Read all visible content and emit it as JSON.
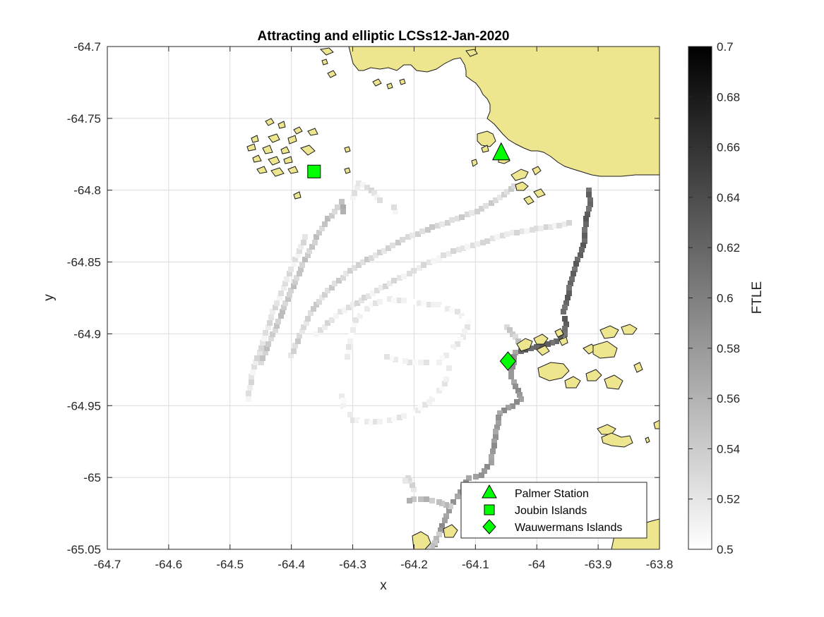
{
  "chart_data": {
    "type": "heatmap",
    "title": "Attracting and elliptic LCSs12-Jan-2020",
    "xlabel": "x",
    "ylabel": "y",
    "xlim": [
      -64.7,
      -63.8
    ],
    "ylim": [
      -65.05,
      -64.7
    ],
    "x_ticks": [
      -64.7,
      -64.6,
      -64.5,
      -64.4,
      -64.3,
      -64.2,
      -64.1,
      -64.0,
      -63.9,
      -63.8
    ],
    "y_ticks": [
      -64.7,
      -64.75,
      -64.8,
      -64.85,
      -64.9,
      -64.95,
      -65.0,
      -65.05
    ],
    "x_tick_labels": [
      "-64.7",
      "-64.6",
      "-64.5",
      "-64.4",
      "-64.3",
      "-64.2",
      "-64.1",
      "-64",
      "-63.9",
      "-63.8"
    ],
    "y_tick_labels": [
      "-64.7",
      "-64.75",
      "-64.8",
      "-64.85",
      "-64.9",
      "-64.95",
      "-65",
      "-65.05"
    ],
    "grid": true,
    "colorbar": {
      "label": "FTLE",
      "colormap": "gray-reversed",
      "range": [
        0.5,
        0.7
      ],
      "ticks": [
        0.5,
        0.52,
        0.54,
        0.56,
        0.58,
        0.6,
        0.62,
        0.64,
        0.66,
        0.68,
        0.7
      ],
      "tick_labels": [
        "0.5",
        "0.52",
        "0.54",
        "0.56",
        "0.58",
        "0.6",
        "0.62",
        "0.64",
        "0.66",
        "0.68",
        "0.7"
      ]
    },
    "land_color": "#eee58f",
    "marker_color": "#00ff00",
    "markers": [
      {
        "name": "Palmer Station",
        "shape": "triangle",
        "x": -64.058,
        "y": -64.774
      },
      {
        "name": "Joubin Islands",
        "shape": "square",
        "x": -64.363,
        "y": -64.787
      },
      {
        "name": "Wauwermans Islands",
        "shape": "diamond",
        "x": -64.047,
        "y": -64.919
      }
    ],
    "legend_position": "bottom-right",
    "ftle_ridges": [
      {
        "value": 0.62,
        "points": [
          [
            -63.915,
            -64.8
          ],
          [
            -63.913,
            -64.81
          ],
          [
            -63.92,
            -64.82
          ],
          [
            -63.922,
            -64.835
          ],
          [
            -63.93,
            -64.845
          ],
          [
            -63.938,
            -64.855
          ],
          [
            -63.945,
            -64.865
          ],
          [
            -63.95,
            -64.875
          ],
          [
            -63.956,
            -64.885
          ],
          [
            -63.952,
            -64.893
          ],
          [
            -63.955,
            -64.9
          ],
          [
            -63.968,
            -64.905
          ],
          [
            -63.99,
            -64.908
          ],
          [
            -64.01,
            -64.91
          ],
          [
            -64.035,
            -64.913
          ]
        ]
      },
      {
        "value": 0.58,
        "points": [
          [
            -64.035,
            -64.913
          ],
          [
            -64.042,
            -64.93
          ],
          [
            -64.03,
            -64.94
          ],
          [
            -64.025,
            -64.945
          ],
          [
            -64.04,
            -64.95
          ],
          [
            -64.06,
            -64.955
          ],
          [
            -64.065,
            -64.965
          ],
          [
            -64.07,
            -64.978
          ],
          [
            -64.075,
            -64.99
          ],
          [
            -64.09,
            -64.998
          ],
          [
            -64.11,
            -65.0
          ],
          [
            -64.125,
            -65.01
          ],
          [
            -64.14,
            -65.02
          ],
          [
            -64.15,
            -65.03
          ],
          [
            -64.16,
            -65.04
          ],
          [
            -64.17,
            -65.05
          ]
        ]
      },
      {
        "value": 0.55,
        "points": [
          [
            -64.14,
            -65.02
          ],
          [
            -64.16,
            -65.017
          ],
          [
            -64.18,
            -65.015
          ],
          [
            -64.2,
            -65.015
          ],
          [
            -64.215,
            -65.018
          ]
        ]
      },
      {
        "value": 0.55,
        "points": [
          [
            -64.16,
            -65.04
          ],
          [
            -64.17,
            -65.048
          ],
          [
            -64.2,
            -65.045
          ]
        ]
      },
      {
        "value": 0.53,
        "points": [
          [
            -64.2,
            -65.008
          ],
          [
            -64.21,
            -65.0
          ],
          [
            -64.22,
            -65.004
          ]
        ]
      },
      {
        "value": 0.54,
        "points": [
          [
            -64.048,
            -64.895
          ],
          [
            -64.04,
            -64.9
          ],
          [
            -64.03,
            -64.905
          ],
          [
            -64.015,
            -64.909
          ]
        ]
      },
      {
        "value": 0.54,
        "points": [
          [
            -64.45,
            -64.92
          ],
          [
            -64.43,
            -64.9
          ],
          [
            -64.415,
            -64.885
          ],
          [
            -64.4,
            -64.87
          ],
          [
            -64.385,
            -64.855
          ],
          [
            -64.37,
            -64.842
          ],
          [
            -64.355,
            -64.83
          ],
          [
            -64.34,
            -64.82
          ],
          [
            -64.325,
            -64.812
          ],
          [
            -64.318,
            -64.808
          ]
        ]
      },
      {
        "value": 0.56,
        "points": [
          [
            -64.318,
            -64.808
          ],
          [
            -64.315,
            -64.815
          ],
          [
            -64.312,
            -64.82
          ]
        ]
      },
      {
        "value": 0.52,
        "points": [
          [
            -64.47,
            -64.945
          ],
          [
            -64.465,
            -64.93
          ],
          [
            -64.45,
            -64.91
          ],
          [
            -64.43,
            -64.885
          ],
          [
            -64.41,
            -64.865
          ],
          [
            -64.39,
            -64.845
          ],
          [
            -64.375,
            -64.83
          ]
        ]
      },
      {
        "value": 0.53,
        "points": [
          [
            -64.4,
            -64.915
          ],
          [
            -64.38,
            -64.895
          ],
          [
            -64.36,
            -64.88
          ],
          [
            -64.33,
            -64.865
          ],
          [
            -64.29,
            -64.852
          ],
          [
            -64.25,
            -64.842
          ],
          [
            -64.21,
            -64.833
          ],
          [
            -64.17,
            -64.826
          ],
          [
            -64.13,
            -64.82
          ],
          [
            -64.09,
            -64.813
          ],
          [
            -64.06,
            -64.805
          ],
          [
            -64.03,
            -64.795
          ]
        ]
      },
      {
        "value": 0.52,
        "points": [
          [
            -64.36,
            -64.9
          ],
          [
            -64.32,
            -64.885
          ],
          [
            -64.28,
            -64.875
          ],
          [
            -64.24,
            -64.865
          ],
          [
            -64.2,
            -64.856
          ],
          [
            -64.16,
            -64.847
          ],
          [
            -64.12,
            -64.84
          ],
          [
            -64.08,
            -64.835
          ],
          [
            -64.04,
            -64.83
          ],
          [
            -64.0,
            -64.827
          ],
          [
            -63.97,
            -64.825
          ],
          [
            -63.94,
            -64.822
          ]
        ]
      },
      {
        "value": 0.51,
        "points": [
          [
            -64.31,
            -64.92
          ],
          [
            -64.305,
            -64.905
          ],
          [
            -64.295,
            -64.89
          ],
          [
            -64.27,
            -64.88
          ],
          [
            -64.24,
            -64.876
          ],
          [
            -64.2,
            -64.878
          ],
          [
            -64.16,
            -64.88
          ],
          [
            -64.13,
            -64.885
          ],
          [
            -64.11,
            -64.892
          ],
          [
            -64.12,
            -64.902
          ],
          [
            -64.14,
            -64.912
          ],
          [
            -64.16,
            -64.92
          ],
          [
            -64.18,
            -64.92
          ],
          [
            -64.2,
            -64.92
          ],
          [
            -64.23,
            -64.918
          ],
          [
            -64.25,
            -64.915
          ]
        ]
      },
      {
        "value": 0.51,
        "points": [
          [
            -64.32,
            -64.94
          ],
          [
            -64.315,
            -64.95
          ],
          [
            -64.3,
            -64.96
          ],
          [
            -64.27,
            -64.962
          ],
          [
            -64.24,
            -64.96
          ],
          [
            -64.2,
            -64.955
          ],
          [
            -64.17,
            -64.945
          ],
          [
            -64.15,
            -64.935
          ],
          [
            -64.14,
            -64.92
          ]
        ]
      },
      {
        "value": 0.52,
        "points": [
          [
            -64.3,
            -64.805
          ],
          [
            -64.29,
            -64.795
          ],
          [
            -64.27,
            -64.8
          ],
          [
            -64.25,
            -64.81
          ]
        ]
      },
      {
        "value": 0.52,
        "points": [
          [
            -64.23,
            -64.815
          ],
          [
            -64.235,
            -64.808
          ]
        ]
      }
    ]
  },
  "legend": {
    "items": [
      {
        "label": "Palmer Station",
        "shape": "triangle"
      },
      {
        "label": "Joubin Islands",
        "shape": "square"
      },
      {
        "label": "Wauwermans Islands",
        "shape": "diamond"
      }
    ]
  }
}
